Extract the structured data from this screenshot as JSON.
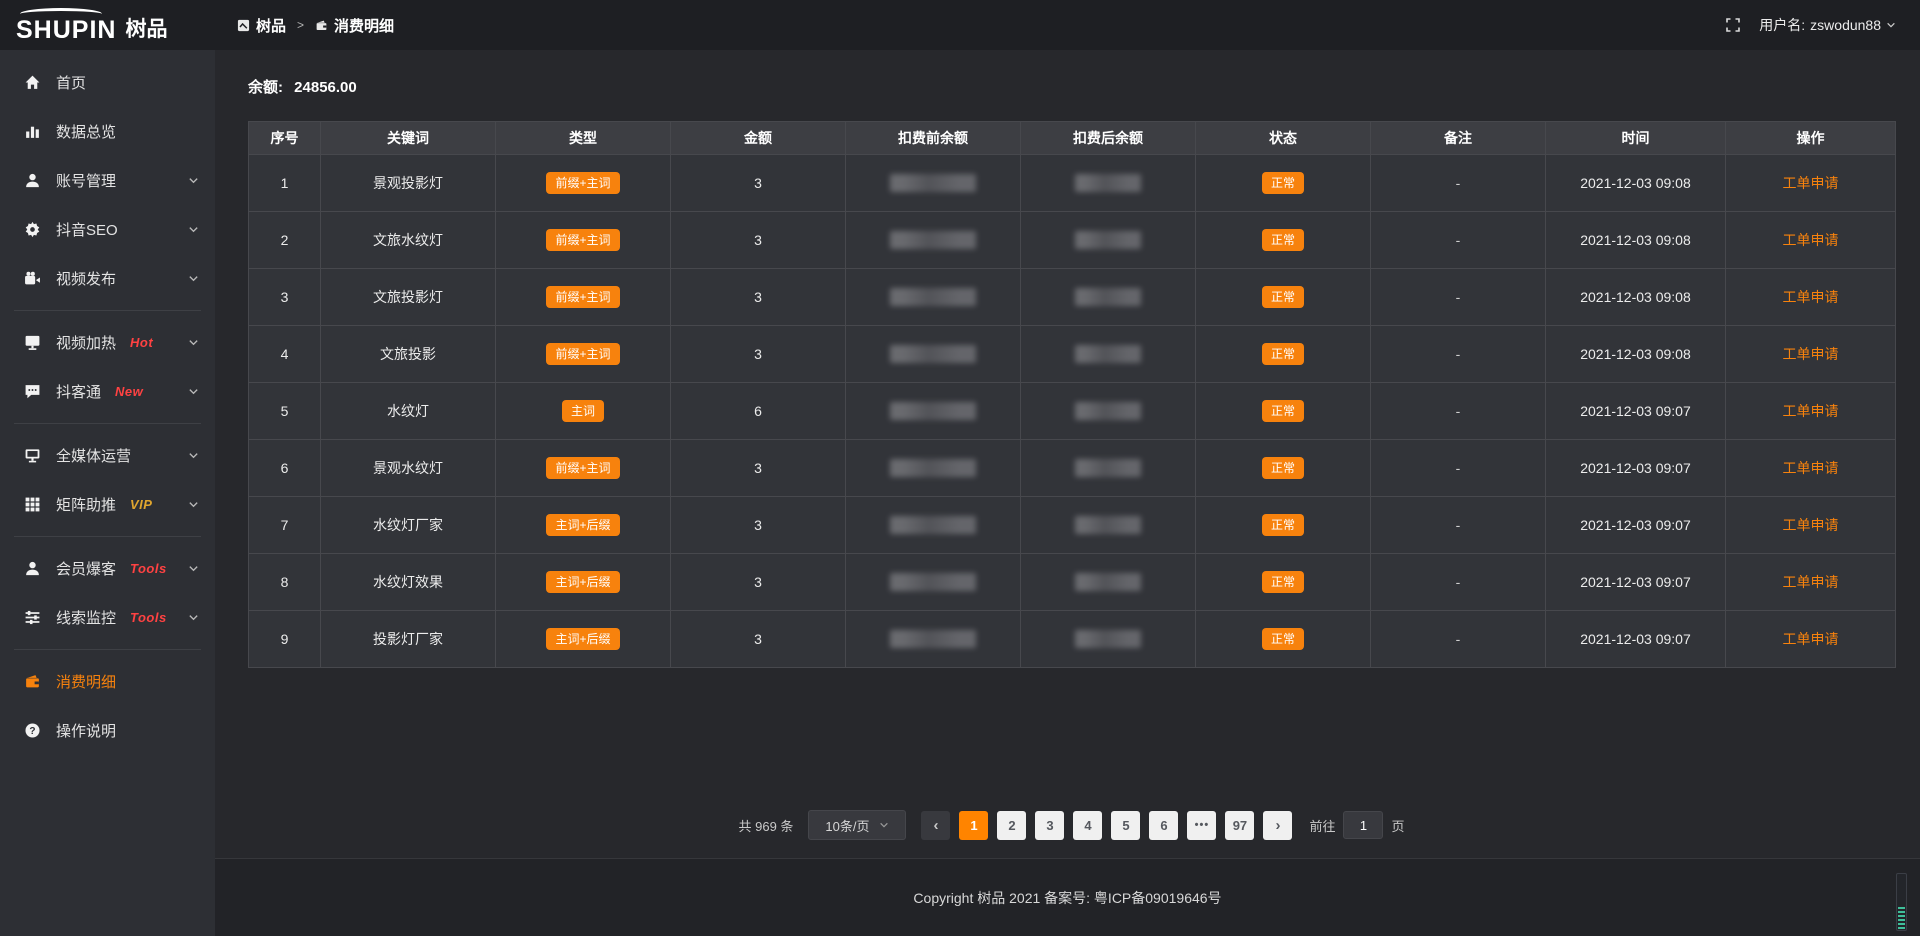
{
  "brand": {
    "name_en": "SHUPIN",
    "name_cn": "树品"
  },
  "header": {
    "breadcrumb": [
      {
        "label": "树品"
      },
      {
        "label": "消费明细"
      }
    ],
    "separator": ">",
    "user_label": "用户名:",
    "username": "zswodun88"
  },
  "sidebar": {
    "items": [
      {
        "id": "home",
        "icon": "home-icon",
        "label": "首页"
      },
      {
        "id": "data-overview",
        "icon": "chart-icon",
        "label": "数据总览"
      },
      {
        "id": "account-mgmt",
        "icon": "user-icon",
        "label": "账号管理",
        "chevron": true
      },
      {
        "id": "douyin-seo",
        "icon": "gear-icon",
        "label": "抖音SEO",
        "chevron": true
      },
      {
        "id": "video-publish",
        "icon": "camera-icon",
        "label": "视频发布",
        "chevron": true,
        "divider_after": true
      },
      {
        "id": "video-heat",
        "icon": "display-icon",
        "label": "视频加热",
        "tag": "Hot",
        "tag_color": "#ff4242",
        "chevron": true
      },
      {
        "id": "douketong",
        "icon": "chat-icon",
        "label": "抖客通",
        "tag": "New",
        "tag_color": "#ff4242",
        "chevron": true,
        "divider_after": true
      },
      {
        "id": "media-ops",
        "icon": "monitor-icon",
        "label": "全媒体运营",
        "chevron": true
      },
      {
        "id": "matrix-boost",
        "icon": "grid-icon",
        "label": "矩阵助推",
        "tag": "VIP",
        "tag_color": "#e0a62e",
        "chevron": true,
        "divider_after": true
      },
      {
        "id": "member-baoke",
        "icon": "user-icon",
        "label": "会员爆客",
        "tag": "Tools",
        "tag_color": "#ff4242",
        "chevron": true
      },
      {
        "id": "clue-monitor",
        "icon": "sliders-icon",
        "label": "线索监控",
        "tag": "Tools",
        "tag_color": "#ff4242",
        "chevron": true,
        "divider_after": true
      },
      {
        "id": "consumption",
        "icon": "wallet-icon",
        "label": "消费明细",
        "active": true
      },
      {
        "id": "instructions",
        "icon": "question-icon",
        "label": "操作说明"
      }
    ]
  },
  "main": {
    "balance_label": "余额:",
    "balance_value": "24856.00",
    "table": {
      "columns": [
        "序号",
        "关键词",
        "类型",
        "金额",
        "扣费前余额",
        "扣费后余额",
        "状态",
        "备注",
        "时间",
        "操作"
      ],
      "rows": [
        {
          "no": "1",
          "keyword": "景观投影灯",
          "type": "前缀+主词",
          "amount": "3",
          "status": "正常",
          "remark": "-",
          "time": "2021-12-03 09:08",
          "action": "工单申请"
        },
        {
          "no": "2",
          "keyword": "文旅水纹灯",
          "type": "前缀+主词",
          "amount": "3",
          "status": "正常",
          "remark": "-",
          "time": "2021-12-03 09:08",
          "action": "工单申请"
        },
        {
          "no": "3",
          "keyword": "文旅投影灯",
          "type": "前缀+主词",
          "amount": "3",
          "status": "正常",
          "remark": "-",
          "time": "2021-12-03 09:08",
          "action": "工单申请"
        },
        {
          "no": "4",
          "keyword": "文旅投影",
          "type": "前缀+主词",
          "amount": "3",
          "status": "正常",
          "remark": "-",
          "time": "2021-12-03 09:08",
          "action": "工单申请"
        },
        {
          "no": "5",
          "keyword": "水纹灯",
          "type": "主词",
          "amount": "6",
          "status": "正常",
          "remark": "-",
          "time": "2021-12-03 09:07",
          "action": "工单申请"
        },
        {
          "no": "6",
          "keyword": "景观水纹灯",
          "type": "前缀+主词",
          "amount": "3",
          "status": "正常",
          "remark": "-",
          "time": "2021-12-03 09:07",
          "action": "工单申请"
        },
        {
          "no": "7",
          "keyword": "水纹灯厂家",
          "type": "主词+后缀",
          "amount": "3",
          "status": "正常",
          "remark": "-",
          "time": "2021-12-03 09:07",
          "action": "工单申请"
        },
        {
          "no": "8",
          "keyword": "水纹灯效果",
          "type": "主词+后缀",
          "amount": "3",
          "status": "正常",
          "remark": "-",
          "time": "2021-12-03 09:07",
          "action": "工单申请"
        },
        {
          "no": "9",
          "keyword": "投影灯厂家",
          "type": "主词+后缀",
          "amount": "3",
          "status": "正常",
          "remark": "-",
          "time": "2021-12-03 09:07",
          "action": "工单申请"
        }
      ]
    },
    "pagination": {
      "total_label": "共 969 条",
      "page_size_label": "10条/页",
      "prev_icon": "‹",
      "next_icon": "›",
      "pages": [
        "1",
        "2",
        "3",
        "4",
        "5",
        "6",
        "•••",
        "97"
      ],
      "active_page": "1",
      "goto_label": "前往",
      "goto_value": "1",
      "goto_unit": "页"
    }
  },
  "footer": {
    "copyright": "Copyright 树品 2021 备案号: 粤ICP备09019646号"
  },
  "colors": {
    "accent": "#f7820d",
    "active_page": "#ff8400",
    "tag_red": "#ff4242",
    "tag_gold": "#e0a62e"
  }
}
